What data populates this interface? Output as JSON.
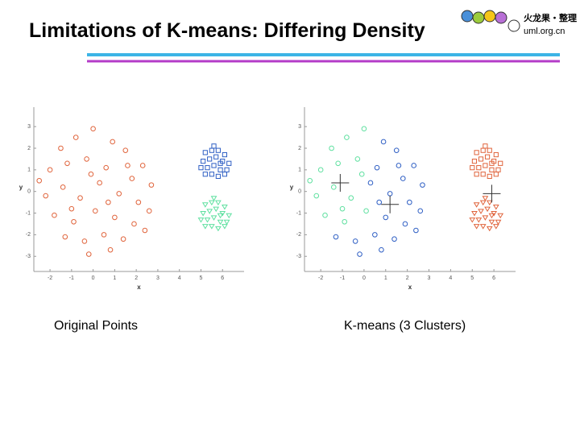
{
  "title": "Limitations of K-means: Differing Density",
  "logo": {
    "name": "火龙果・整理",
    "url": "uml.org.cn"
  },
  "chart_data": [
    {
      "type": "scatter",
      "caption": "Original Points",
      "xlabel": "x",
      "ylabel": "y",
      "xlim": [
        -2.75,
        7
      ],
      "ylim": [
        -3.7,
        3.9
      ],
      "xticks": [
        -2,
        -1,
        0,
        1,
        2,
        3,
        4,
        5,
        6
      ],
      "yticks": [
        -3,
        -2,
        -1,
        0,
        1,
        2,
        3
      ],
      "series": [
        {
          "color": "#e0643c",
          "marker": "circle",
          "x": [
            -1.5,
            -0.8,
            0.0,
            0.9,
            1.5,
            2.3,
            -2.0,
            -1.2,
            -0.3,
            0.6,
            1.8,
            2.7,
            -2.2,
            -1.4,
            -0.6,
            0.3,
            1.2,
            2.1,
            -1.8,
            -0.9,
            0.1,
            1.0,
            1.9,
            2.6,
            -1.3,
            -0.4,
            0.5,
            1.4,
            -0.2,
            0.8,
            -2.5,
            -0.1,
            1.6,
            -1.0,
            0.7,
            2.4
          ],
          "values": [
            2.0,
            2.5,
            2.9,
            2.3,
            1.9,
            1.2,
            1.0,
            1.3,
            1.5,
            1.1,
            0.6,
            0.3,
            -0.2,
            0.2,
            -0.3,
            0.4,
            -0.1,
            -0.5,
            -1.1,
            -1.4,
            -0.9,
            -1.2,
            -1.5,
            -0.9,
            -2.1,
            -2.3,
            -2.0,
            -2.2,
            -2.9,
            -2.7,
            0.5,
            0.8,
            1.2,
            -0.8,
            -0.5,
            -1.8
          ]
        },
        {
          "color": "#2f5fc4",
          "marker": "square",
          "x": [
            5.2,
            5.5,
            5.8,
            6.1,
            5.1,
            5.4,
            5.7,
            6.0,
            6.3,
            5.0,
            5.3,
            5.6,
            5.9,
            6.2,
            5.2,
            5.5,
            5.8,
            6.1,
            5.6,
            5.9
          ],
          "values": [
            1.8,
            1.9,
            1.9,
            1.7,
            1.4,
            1.5,
            1.6,
            1.4,
            1.3,
            1.1,
            1.1,
            1.2,
            1.0,
            1.0,
            0.8,
            0.8,
            0.7,
            0.8,
            2.1,
            1.3
          ]
        },
        {
          "color": "#5fe0a0",
          "marker": "triangle",
          "x": [
            5.2,
            5.5,
            5.8,
            6.1,
            5.1,
            5.4,
            5.7,
            6.0,
            6.3,
            5.0,
            5.3,
            5.6,
            5.9,
            6.2,
            5.2,
            5.5,
            5.8,
            6.1,
            5.6,
            5.9
          ],
          "values": [
            -0.6,
            -0.5,
            -0.5,
            -0.7,
            -1.0,
            -0.9,
            -0.8,
            -1.0,
            -1.1,
            -1.3,
            -1.3,
            -1.2,
            -1.4,
            -1.4,
            -1.6,
            -1.6,
            -1.7,
            -1.6,
            -0.3,
            -1.1
          ]
        }
      ]
    },
    {
      "type": "scatter",
      "caption": "K-means (3 Clusters)",
      "xlabel": "x",
      "ylabel": "y",
      "xlim": [
        -2.75,
        7
      ],
      "ylim": [
        -3.7,
        3.9
      ],
      "xticks": [
        -2,
        -1,
        0,
        1,
        2,
        3,
        4,
        5,
        6
      ],
      "yticks": [
        -3,
        -2,
        -1,
        0,
        1,
        2,
        3
      ],
      "series": [
        {
          "color": "#5fe0a0",
          "marker": "circle",
          "x": [
            -1.5,
            -0.8,
            0.0,
            -2.0,
            -1.2,
            -0.3,
            -2.2,
            -1.4,
            -0.6,
            -1.8,
            -0.9,
            0.1,
            -2.5,
            -0.1,
            -1.0
          ],
          "values": [
            2.0,
            2.5,
            2.9,
            1.0,
            1.3,
            1.5,
            -0.2,
            0.2,
            -0.3,
            -1.1,
            -1.4,
            -0.9,
            0.5,
            0.8,
            -0.8
          ]
        },
        {
          "color": "#2f5fc4",
          "marker": "circle",
          "x": [
            0.9,
            1.5,
            2.3,
            0.6,
            1.8,
            2.7,
            0.3,
            1.2,
            2.1,
            1.0,
            1.9,
            2.6,
            -1.3,
            -0.4,
            0.5,
            1.4,
            -0.2,
            0.8,
            1.6,
            0.7,
            2.4
          ],
          "values": [
            2.3,
            1.9,
            1.2,
            1.1,
            0.6,
            0.3,
            0.4,
            -0.1,
            -0.5,
            -1.2,
            -1.5,
            -0.9,
            -2.1,
            -2.3,
            -2.0,
            -2.2,
            -2.9,
            -2.7,
            1.2,
            -0.5,
            -1.8
          ]
        },
        {
          "color": "#e0643c",
          "marker": "square",
          "x": [
            5.2,
            5.5,
            5.8,
            6.1,
            5.1,
            5.4,
            5.7,
            6.0,
            6.3,
            5.0,
            5.3,
            5.6,
            5.9,
            6.2,
            5.2,
            5.5,
            5.8,
            6.1,
            5.6,
            5.9
          ],
          "values": [
            1.8,
            1.9,
            1.9,
            1.7,
            1.4,
            1.5,
            1.6,
            1.4,
            1.3,
            1.1,
            1.1,
            1.2,
            1.0,
            1.0,
            0.8,
            0.8,
            0.7,
            0.8,
            2.1,
            1.3
          ]
        },
        {
          "color": "#e0643c",
          "marker": "triangle",
          "x": [
            5.2,
            5.5,
            5.8,
            6.1,
            5.1,
            5.4,
            5.7,
            6.0,
            6.3,
            5.0,
            5.3,
            5.6,
            5.9,
            6.2,
            5.2,
            5.5,
            5.8,
            6.1,
            5.6,
            5.9
          ],
          "values": [
            -0.6,
            -0.5,
            -0.5,
            -0.7,
            -1.0,
            -0.9,
            -0.8,
            -1.0,
            -1.1,
            -1.3,
            -1.3,
            -1.2,
            -1.4,
            -1.4,
            -1.6,
            -1.6,
            -1.7,
            -1.6,
            -0.3,
            -1.1
          ]
        },
        {
          "color": "#333333",
          "marker": "plus",
          "x": [
            -1.1,
            1.2,
            5.9
          ],
          "values": [
            0.4,
            -0.6,
            -0.1
          ]
        }
      ]
    }
  ]
}
